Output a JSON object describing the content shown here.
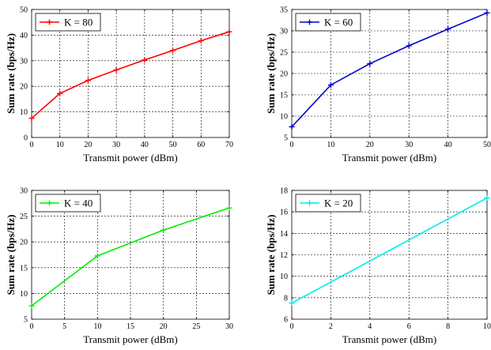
{
  "chart_data": [
    {
      "type": "line",
      "xlabel": "Transmit power (dBm)",
      "ylabel": "Sum rate (bps/Hz)",
      "xlim": [
        0,
        70
      ],
      "ylim": [
        0,
        50
      ],
      "xticks": [
        0,
        10,
        20,
        30,
        40,
        50,
        60,
        70
      ],
      "yticks": [
        0,
        10,
        20,
        30,
        40,
        50
      ],
      "grid": true,
      "legend_position": "top-left",
      "series": [
        {
          "name": "K = 80",
          "color": "#ff0000",
          "marker": "plus",
          "x": [
            0,
            10,
            20,
            30,
            40,
            50,
            60,
            70
          ],
          "y": [
            7.5,
            17.2,
            22.3,
            26.4,
            30.3,
            34.0,
            37.8,
            41.3
          ]
        }
      ]
    },
    {
      "type": "line",
      "xlabel": "Transmit power (dBm)",
      "ylabel": "Sum rate (bps/Hz)",
      "xlim": [
        0,
        50
      ],
      "ylim": [
        5,
        35
      ],
      "xticks": [
        0,
        10,
        20,
        30,
        40,
        50
      ],
      "yticks": [
        5,
        10,
        15,
        20,
        25,
        30,
        35
      ],
      "grid": true,
      "legend_position": "top-left",
      "series": [
        {
          "name": "K = 60",
          "color": "#0000cc",
          "marker": "plus",
          "x": [
            0,
            10,
            20,
            30,
            40,
            50
          ],
          "y": [
            7.5,
            17.3,
            22.3,
            26.5,
            30.4,
            34.2
          ]
        }
      ]
    },
    {
      "type": "line",
      "xlabel": "Transmit power (dBm)",
      "ylabel": "Sum rate (bps/Hz)",
      "xlim": [
        0,
        30
      ],
      "ylim": [
        5,
        30
      ],
      "xticks": [
        0,
        5,
        10,
        15,
        20,
        25,
        30
      ],
      "yticks": [
        5,
        10,
        15,
        20,
        25,
        30
      ],
      "grid": true,
      "legend_position": "top-left",
      "series": [
        {
          "name": "K = 40",
          "color": "#00ee00",
          "marker": "plus",
          "x": [
            0,
            10,
            20,
            30
          ],
          "y": [
            7.6,
            17.3,
            22.3,
            26.6
          ]
        }
      ]
    },
    {
      "type": "line",
      "xlabel": "Transmit power (dBm)",
      "ylabel": "Sum rate (bps/Hz)",
      "xlim": [
        0,
        10
      ],
      "ylim": [
        6,
        18
      ],
      "xticks": [
        0,
        2,
        4,
        6,
        8,
        10
      ],
      "yticks": [
        6,
        8,
        10,
        12,
        14,
        16,
        18
      ],
      "grid": true,
      "legend_position": "top-left",
      "series": [
        {
          "name": "K = 20",
          "color": "#00eeee",
          "marker": "plus",
          "x": [
            0,
            10
          ],
          "y": [
            7.5,
            17.3
          ]
        }
      ]
    }
  ]
}
